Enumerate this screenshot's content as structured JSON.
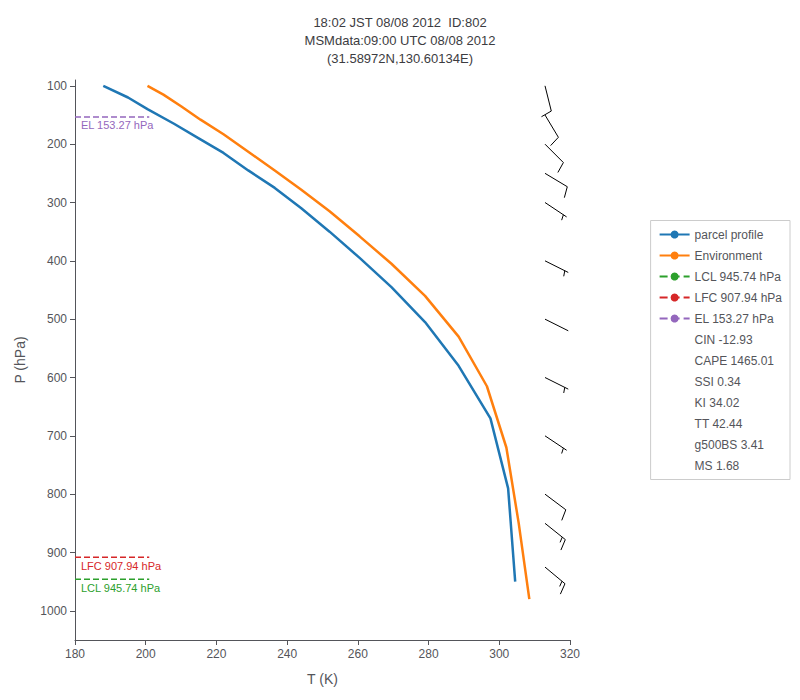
{
  "chart_data": {
    "type": "line",
    "title": "18:02 JST 08/08 2012  ID:802\nMSMdata:09:00 UTC 08/08 2012\n(31.58972N,130.60134E)",
    "xlabel": "T (K)",
    "ylabel": "P (hPa)",
    "xlim": [
      180,
      320
    ],
    "ylim": [
      1050,
      90
    ],
    "xticks": [
      180,
      200,
      220,
      240,
      260,
      280,
      300,
      320
    ],
    "yticks": [
      100,
      200,
      300,
      400,
      500,
      600,
      700,
      800,
      900,
      1000
    ],
    "grid": false,
    "legend": "right",
    "series": [
      {
        "name": "parcel profile",
        "type": "line",
        "color": "#1f77b4",
        "x": [
          188.0,
          195.0,
          200.5,
          208.0,
          215.0,
          222.0,
          229.0,
          236.5,
          244.0,
          252.0,
          260.5,
          269.5,
          279.0,
          288.5,
          297.5,
          302.5,
          304.5
        ],
        "values": [
          100,
          120,
          140,
          165,
          190,
          215,
          245,
          275,
          310,
          350,
          395,
          445,
          505,
          580,
          670,
          790,
          950
        ]
      },
      {
        "name": "Environment",
        "type": "line",
        "color": "#ff7f0e",
        "x": [
          200.5,
          205.0,
          210.0,
          215.5,
          222.0,
          229.0,
          236.5,
          244.0,
          252.0,
          260.5,
          269.5,
          279.0,
          288.5,
          296.5,
          302.0,
          305.5,
          308.5
        ],
        "values": [
          100,
          115,
          135,
          158,
          183,
          213,
          245,
          278,
          315,
          358,
          405,
          460,
          530,
          615,
          720,
          850,
          980
        ]
      },
      {
        "name": "LCL 945.74 hPa",
        "type": "hline",
        "line_style": "dashed",
        "color": "#2ca02c",
        "values": [
          945.74
        ]
      },
      {
        "name": "LFC 907.94 hPa",
        "type": "hline",
        "line_style": "dashed",
        "color": "#d62728",
        "values": [
          907.94
        ]
      },
      {
        "name": "EL 153.27 hPa",
        "type": "hline",
        "line_style": "dashed",
        "color": "#9467bd",
        "values": [
          153.27
        ]
      }
    ],
    "annotations": [
      "CIN -12.93",
      "CAPE 1465.01",
      "SSI 0.34",
      "KI 34.02",
      "TT 42.44",
      "g500BS 3.41",
      "MS 1.68"
    ],
    "wind_barbs": {
      "P": [
        100,
        150,
        200,
        250,
        300,
        400,
        500,
        600,
        700,
        800,
        850,
        925
      ],
      "u": [
        -3,
        -6,
        -8,
        -10,
        -6,
        -4,
        -2,
        -4,
        -6,
        -8,
        -10,
        -12
      ],
      "v": [
        12,
        10,
        8,
        6,
        4,
        2,
        1,
        2,
        4,
        6,
        8,
        10
      ]
    }
  }
}
